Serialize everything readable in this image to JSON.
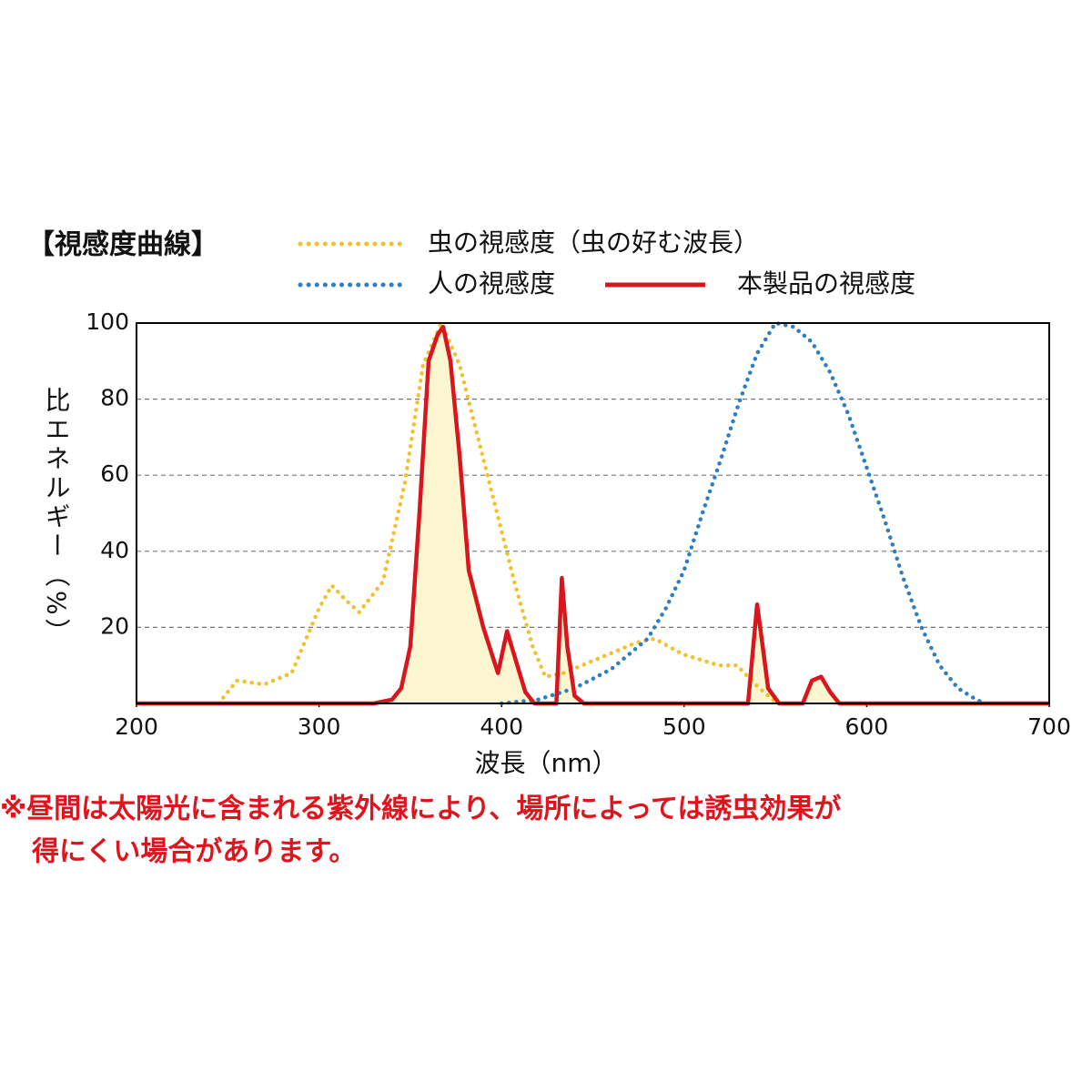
{
  "chart_data": {
    "type": "line",
    "title": "【視感度曲線】",
    "x_label": "波長（nm）",
    "y_label": "比エネルギー（%）",
    "note": [
      "※昼間は太陽光に含まれる紫外線により、場所によっては誘虫効果が",
      "得にくい場合があります。"
    ],
    "xlim": [
      200,
      700
    ],
    "xticks": [
      200,
      300,
      400,
      500,
      600,
      700
    ],
    "ylim": [
      0,
      100
    ],
    "yticks": [
      20,
      40,
      60,
      80,
      100
    ],
    "grid": true,
    "series": [
      {
        "name": "虫の視感度（虫の好む波長）",
        "color": "#f2c12e",
        "style": "dotted",
        "x": [
          245,
          255,
          270,
          285,
          300,
          307,
          315,
          322,
          335,
          347,
          357,
          367,
          377,
          387,
          397,
          407,
          417,
          424,
          434,
          449,
          474,
          484,
          499,
          519,
          529,
          539,
          551
        ],
        "values": [
          0,
          6,
          5,
          8,
          25,
          31,
          27,
          24,
          32,
          58,
          89,
          100,
          89,
          70,
          51,
          32,
          15,
          7,
          8,
          11,
          16,
          17,
          13,
          10,
          10,
          5,
          0
        ]
      },
      {
        "name": "人の視感度",
        "color": "#2f7fc0",
        "style": "dotted",
        "x": [
          400,
          420,
          440,
          460,
          480,
          490,
          500,
          510,
          520,
          530,
          540,
          550,
          560,
          570,
          580,
          590,
          600,
          610,
          620,
          630,
          640,
          650,
          660,
          665
        ],
        "values": [
          0,
          1,
          4,
          9,
          17,
          25,
          35,
          50,
          64,
          79,
          92,
          100,
          99,
          95,
          87,
          76,
          62,
          48,
          33,
          20,
          10,
          4,
          1,
          0
        ]
      },
      {
        "name": "本製品の視感度",
        "color": "#d7161e",
        "style": "solid",
        "fill": "#fbf6cf",
        "x": [
          200,
          330,
          340,
          345,
          350,
          355,
          360,
          365,
          368,
          372,
          377,
          382,
          390,
          398,
          403,
          408,
          413,
          418,
          430,
          433,
          436,
          440,
          445,
          535,
          540,
          543,
          546,
          552,
          565,
          570,
          575,
          580,
          585,
          600,
          700
        ],
        "values": [
          0,
          0,
          1,
          4,
          15,
          50,
          90,
          97,
          99,
          90,
          65,
          35,
          20,
          8,
          19,
          11,
          3,
          0,
          0,
          33,
          15,
          2,
          0,
          0,
          26,
          15,
          4,
          0,
          0,
          6,
          7,
          3,
          0,
          0,
          0
        ]
      }
    ]
  }
}
